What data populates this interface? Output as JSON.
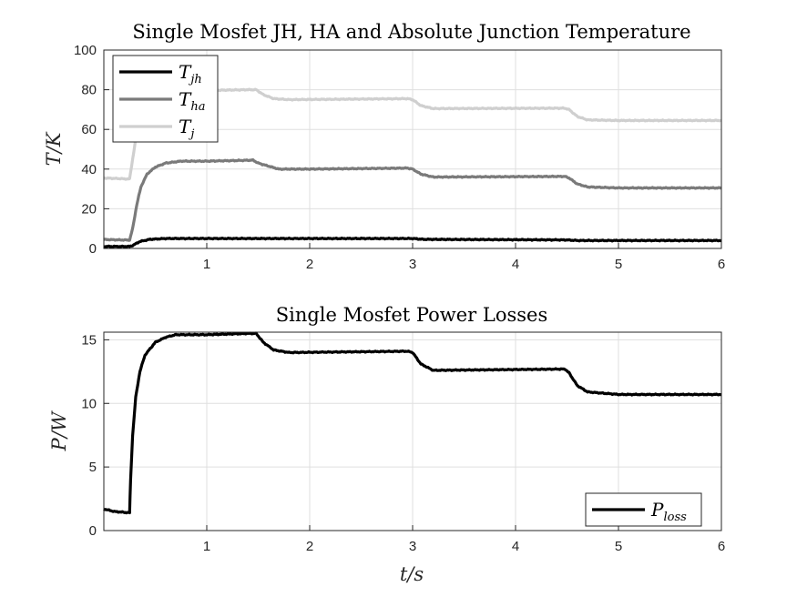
{
  "chart_data": [
    {
      "type": "line",
      "title": "Single Mosfet JH, HA and Absolute Junction Temperature",
      "ylabel": "T/K",
      "xlabel": "",
      "xlim": [
        0,
        6
      ],
      "ylim": [
        0,
        100
      ],
      "xticks": [
        1,
        2,
        3,
        4,
        5,
        6
      ],
      "yticks": [
        0,
        20,
        40,
        60,
        80,
        100
      ],
      "grid": true,
      "legend_position": "top-left",
      "series": [
        {
          "name": "T",
          "name_sub": "jh",
          "color": "#000000",
          "points": [
            [
              0,
              1
            ],
            [
              0.25,
              1
            ],
            [
              0.28,
              1.5
            ],
            [
              0.35,
              3.5
            ],
            [
              0.45,
              4.6
            ],
            [
              0.6,
              5
            ],
            [
              1.5,
              5
            ],
            [
              1.6,
              5
            ],
            [
              3.0,
              5
            ],
            [
              3.1,
              4.6
            ],
            [
              4.5,
              4.3
            ],
            [
              4.6,
              4
            ],
            [
              6.0,
              4
            ]
          ]
        },
        {
          "name": "T",
          "name_sub": "ha",
          "color": "#7a7a7a",
          "points": [
            [
              0,
              4.5
            ],
            [
              0.25,
              4.2
            ],
            [
              0.28,
              10
            ],
            [
              0.32,
              22
            ],
            [
              0.36,
              31
            ],
            [
              0.42,
              37.5
            ],
            [
              0.5,
              41
            ],
            [
              0.6,
              43
            ],
            [
              0.75,
              44
            ],
            [
              1.0,
              44
            ],
            [
              1.45,
              44.5
            ],
            [
              1.5,
              43
            ],
            [
              1.6,
              41.5
            ],
            [
              1.7,
              40
            ],
            [
              2.0,
              40
            ],
            [
              2.95,
              40.5
            ],
            [
              3.0,
              40
            ],
            [
              3.08,
              37.5
            ],
            [
              3.2,
              36
            ],
            [
              4.48,
              36.3
            ],
            [
              4.52,
              35.5
            ],
            [
              4.6,
              32.5
            ],
            [
              4.7,
              31
            ],
            [
              5.0,
              30.5
            ],
            [
              6.0,
              30.5
            ]
          ]
        },
        {
          "name": "T",
          "name_sub": "j",
          "color": "#cfcfcf",
          "points": [
            [
              0,
              35.5
            ],
            [
              0.25,
              35
            ],
            [
              0.28,
              45
            ],
            [
              0.33,
              62
            ],
            [
              0.38,
              72
            ],
            [
              0.45,
              77
            ],
            [
              0.55,
              79
            ],
            [
              0.8,
              79.5
            ],
            [
              1.4,
              80
            ],
            [
              1.48,
              80
            ],
            [
              1.55,
              77.5
            ],
            [
              1.65,
              75.5
            ],
            [
              1.8,
              75
            ],
            [
              2.95,
              75.5
            ],
            [
              3.0,
              75
            ],
            [
              3.08,
              72
            ],
            [
              3.2,
              70.5
            ],
            [
              4.48,
              70.7
            ],
            [
              4.52,
              70
            ],
            [
              4.6,
              66.5
            ],
            [
              4.7,
              64.8
            ],
            [
              5.0,
              64.5
            ],
            [
              6.0,
              64.5
            ]
          ]
        }
      ]
    },
    {
      "type": "line",
      "title": "Single Mosfet Power Losses",
      "ylabel": "P/W",
      "xlabel": "t/s",
      "xlim": [
        0,
        6
      ],
      "ylim": [
        0,
        15.6
      ],
      "xticks": [
        1,
        2,
        3,
        4,
        5,
        6
      ],
      "yticks": [
        0,
        5,
        10,
        15
      ],
      "grid": true,
      "legend_position": "bottom-right",
      "series": [
        {
          "name": "P",
          "name_sub": "loss",
          "color": "#000000",
          "points": [
            [
              0,
              1.7
            ],
            [
              0.1,
              1.5
            ],
            [
              0.25,
              1.4
            ],
            [
              0.26,
              4
            ],
            [
              0.28,
              7.5
            ],
            [
              0.31,
              10.5
            ],
            [
              0.35,
              12.5
            ],
            [
              0.4,
              13.8
            ],
            [
              0.5,
              14.8
            ],
            [
              0.6,
              15.2
            ],
            [
              0.7,
              15.4
            ],
            [
              1.0,
              15.4
            ],
            [
              1.4,
              15.5
            ],
            [
              1.48,
              15.5
            ],
            [
              1.55,
              14.8
            ],
            [
              1.65,
              14.2
            ],
            [
              1.8,
              14
            ],
            [
              2.95,
              14.1
            ],
            [
              3.0,
              14
            ],
            [
              3.08,
              13.1
            ],
            [
              3.2,
              12.6
            ],
            [
              4.48,
              12.7
            ],
            [
              4.52,
              12.4
            ],
            [
              4.6,
              11.4
            ],
            [
              4.7,
              10.9
            ],
            [
              5.0,
              10.7
            ],
            [
              6.0,
              10.7
            ]
          ]
        }
      ]
    }
  ]
}
